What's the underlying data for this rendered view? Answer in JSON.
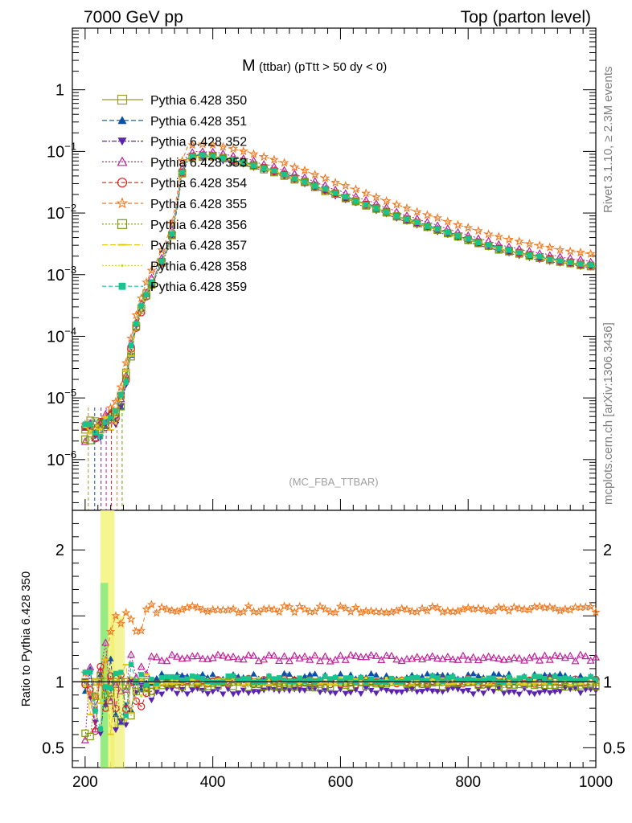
{
  "header": {
    "left": "7000 GeV pp",
    "right": "Top (parton level)"
  },
  "side": {
    "rivet": "Rivet 3.1.10, ≥ 2.3M events",
    "mcplots": "mcplots.cern.ch [arXiv:1306.3436]"
  },
  "chart_data": {
    "type": "line",
    "title": "M",
    "title_sub": "(ttbar) (pTtt > 50 dy < 0)",
    "analysis_tag": "(MC_FBA_TTBAR)",
    "main": {
      "yscale": "log",
      "xlim": [
        180,
        1000
      ],
      "ylim": [
        1.5e-07,
        10
      ],
      "yticks": [
        {
          "v": 1e-06,
          "label": "10",
          "exp": "−6"
        },
        {
          "v": 1e-05,
          "label": "10",
          "exp": "−5"
        },
        {
          "v": 0.0001,
          "label": "10",
          "exp": "−4"
        },
        {
          "v": 0.001,
          "label": "10",
          "exp": "−3"
        },
        {
          "v": 0.01,
          "label": "10",
          "exp": "−2"
        },
        {
          "v": 0.1,
          "label": "10",
          "exp": "−1"
        },
        {
          "v": 1,
          "label": "1",
          "exp": ""
        }
      ]
    },
    "ratio": {
      "ylabel": "Ratio to Pythia 6.428 350",
      "ylim": [
        0.35,
        2.3
      ],
      "yticks": [
        {
          "v": 0.5,
          "label": "0.5"
        },
        {
          "v": 1,
          "label": "1"
        },
        {
          "v": 2,
          "label": "2"
        }
      ]
    },
    "xticks": [
      200,
      400,
      600,
      800,
      1000
    ],
    "baseline": {
      "x": [
        200,
        210,
        220,
        230,
        240,
        250,
        260,
        270,
        280,
        290,
        300,
        310,
        320,
        330,
        340,
        350,
        360,
        370,
        380,
        400,
        450,
        500,
        550,
        600,
        650,
        700,
        750,
        800,
        850,
        900,
        950,
        1000
      ],
      "y": [
        3.5e-06,
        3.5e-06,
        3.5e-06,
        4e-06,
        5e-06,
        6e-06,
        1.5e-05,
        5e-05,
        0.00016,
        0.00035,
        0.0006,
        0.001,
        0.0016,
        0.0028,
        0.006,
        0.04,
        0.075,
        0.082,
        0.085,
        0.083,
        0.065,
        0.046,
        0.03,
        0.019,
        0.0125,
        0.008,
        0.0054,
        0.0037,
        0.0026,
        0.002,
        0.0016,
        0.00135
      ]
    },
    "series": [
      {
        "name": "Pythia 6.428 350",
        "color": "#9c9a2a",
        "marker": "square-open",
        "dash": "",
        "ratio": 1.0
      },
      {
        "name": "Pythia 6.428 351",
        "color": "#0b4fa8",
        "marker": "triangle-up",
        "dash": "6,3",
        "ratio": 1.04
      },
      {
        "name": "Pythia 6.428 352",
        "color": "#5a23b0",
        "marker": "triangle-down",
        "dash": "6,2,2,2",
        "ratio": 0.93
      },
      {
        "name": "Pythia 6.428 353",
        "color": "#c0229a",
        "marker": "triangle-up-open",
        "dash": "2,2",
        "ratio": 1.18
      },
      {
        "name": "Pythia 6.428 354",
        "color": "#e0201b",
        "marker": "circle-open",
        "dash": "5,3",
        "ratio": 1.0
      },
      {
        "name": "Pythia 6.428 355",
        "color": "#f07820",
        "marker": "star-open",
        "dash": "5,3",
        "ratio": 1.55
      },
      {
        "name": "Pythia 6.428 356",
        "color": "#7a9a10",
        "marker": "square-open",
        "dash": "2,2",
        "ratio": 0.98
      },
      {
        "name": "Pythia 6.428 357",
        "color": "#e4c813",
        "marker": "dash",
        "dash": "7,3",
        "ratio": 1.0
      },
      {
        "name": "Pythia 6.428 358",
        "color": "#cde030",
        "marker": "dot",
        "dash": "2,2",
        "ratio": 1.01
      },
      {
        "name": "Pythia 6.428 359",
        "color": "#19c38d",
        "marker": "square",
        "dash": "5,3",
        "ratio": 1.02
      }
    ]
  }
}
